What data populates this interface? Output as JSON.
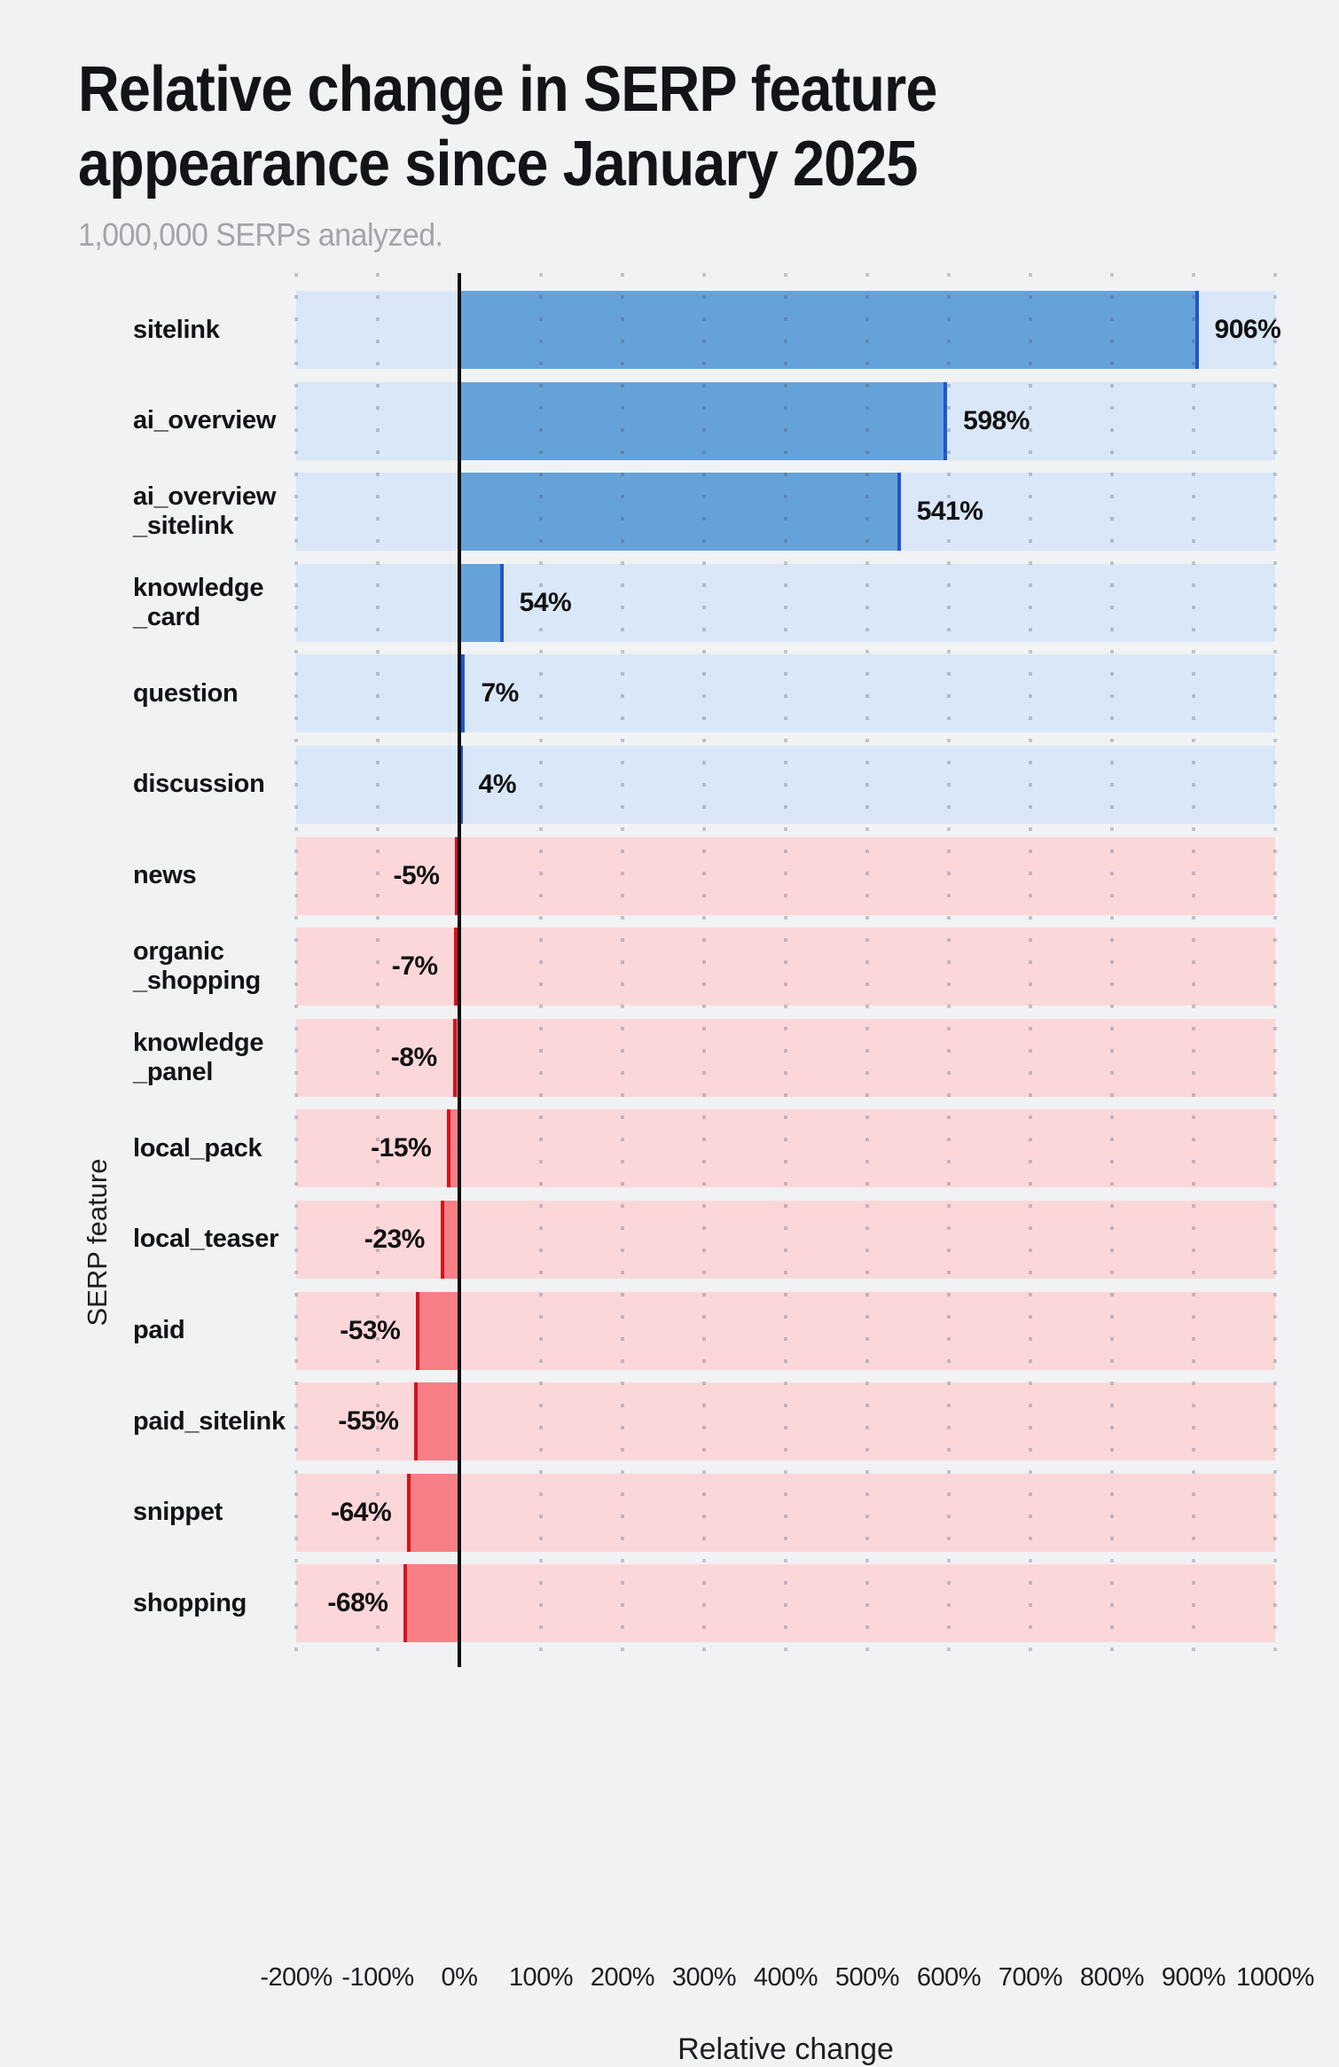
{
  "title_lines": [
    "Relative change in SERP feature",
    "appearance since January 2025"
  ],
  "subtitle": "1,000,000 SERPs analyzed.",
  "colors": {
    "page_bg": "#f1f2f4",
    "pos_row_bg": "#d9e7f8",
    "pos_bar": "#66a2da",
    "pos_edge": "#1f57c9",
    "neg_row_bg": "#fcd7da",
    "neg_bar": "#f87f85",
    "neg_edge": "#d6121c",
    "zero_line": "#0e0e11",
    "title_text": "#131318",
    "subtitle_text": "#a3a4a9",
    "label_text": "#111111"
  },
  "chart_data": {
    "type": "bar",
    "orientation": "horizontal",
    "title": "Relative change in SERP feature appearance since January 2025",
    "subtitle": "1,000,000 SERPs analyzed.",
    "xlabel": "Relative change",
    "ylabel": "SERP feature",
    "xlim": [
      -200,
      1000
    ],
    "grid": "vertical-dotted",
    "legend": "none",
    "categories": [
      "sitelink",
      "ai_overview",
      "ai_overview_sitelink",
      "knowledge_card",
      "question",
      "discussion",
      "news",
      "organic_shopping",
      "knowledge_panel",
      "local_pack",
      "local_teaser",
      "paid",
      "paid_sitelink",
      "snippet",
      "shopping"
    ],
    "category_display": [
      [
        "sitelink"
      ],
      [
        "ai_overview"
      ],
      [
        "ai_overview",
        "_sitelink"
      ],
      [
        "knowledge",
        "_card"
      ],
      [
        "question"
      ],
      [
        "discussion"
      ],
      [
        "news"
      ],
      [
        "organic",
        "_shopping"
      ],
      [
        "knowledge",
        "_panel"
      ],
      [
        "local_pack"
      ],
      [
        "local_teaser"
      ],
      [
        "paid"
      ],
      [
        "paid_sitelink"
      ],
      [
        "snippet"
      ],
      [
        "shopping"
      ]
    ],
    "values": [
      906,
      598,
      541,
      54,
      7,
      4,
      -5,
      -7,
      -8,
      -15,
      -23,
      -53,
      -55,
      -64,
      -68
    ],
    "value_labels": [
      "906%",
      "598%",
      "541%",
      "54%",
      "7%",
      "4%",
      "-5%",
      "-7%",
      "-8%",
      "-15%",
      "-23%",
      "-53%",
      "-55%",
      "-64%",
      "-68%"
    ],
    "xticks": [
      -200,
      -100,
      0,
      100,
      200,
      300,
      400,
      500,
      600,
      700,
      800,
      900,
      1000
    ],
    "xtick_labels": [
      "-200%",
      "-100%",
      "0%",
      "100%",
      "200%",
      "300%",
      "400%",
      "500%",
      "600%",
      "700%",
      "800%",
      "900%",
      "1000%"
    ]
  }
}
